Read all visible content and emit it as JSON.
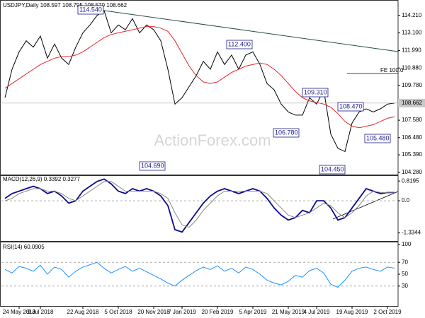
{
  "watermark": "ActionForex.com",
  "chart_data": [
    {
      "type": "line",
      "title": "USDJPY,Daily  108.597 108.795 108.570 108.662",
      "ylim": [
        104.1,
        115.0
      ],
      "yticks": [
        {
          "value": 104.28,
          "label": "104.280"
        },
        {
          "value": 105.39,
          "label": "105.390"
        },
        {
          "value": 106.48,
          "label": "106.480"
        },
        {
          "value": 107.58,
          "label": "107.580"
        },
        {
          "value": 109.78,
          "label": "109.780"
        },
        {
          "value": 110.88,
          "label": "110.880"
        },
        {
          "value": 111.99,
          "label": "111.990"
        },
        {
          "value": 113.1,
          "label": "113.100"
        },
        {
          "value": 114.21,
          "label": "114.210"
        }
      ],
      "last_price": 108.662,
      "annotations": [
        "114.540",
        "112.400",
        "109.310",
        "108.470",
        "106.780",
        "105.480",
        "104.690",
        "104.450",
        "FE 100.0"
      ],
      "series": [
        {
          "name": "USDJPY",
          "color": "#000000",
          "values": [
            109.0,
            110.8,
            111.9,
            112.6,
            112.2,
            112.9,
            111.5,
            112.4,
            111.5,
            111.1,
            112.2,
            113.1,
            113.6,
            114.2,
            114.5,
            113.1,
            113.6,
            113.3,
            114.0,
            113.1,
            113.6,
            113.3,
            112.6,
            110.8,
            108.6,
            109.0,
            109.7,
            110.4,
            111.3,
            110.8,
            111.9,
            111.1,
            111.7,
            110.8,
            111.7,
            111.9,
            111.1,
            109.9,
            109.5,
            108.6,
            108.1,
            107.9,
            107.9,
            109.0,
            108.6,
            109.5,
            106.7,
            105.8,
            105.6,
            107.4,
            108.1,
            108.3,
            108.1,
            108.3,
            108.6,
            108.662
          ]
        },
        {
          "name": "MA",
          "color": "#e8242b",
          "values": [
            109.6,
            109.9,
            110.2,
            110.5,
            110.8,
            111.1,
            111.3,
            111.5,
            111.6,
            111.6,
            111.7,
            111.9,
            112.2,
            112.5,
            112.8,
            113.0,
            113.1,
            113.2,
            113.3,
            113.4,
            113.5,
            113.5,
            113.4,
            113.2,
            112.6,
            111.8,
            111.0,
            110.4,
            110.0,
            109.9,
            110.0,
            110.3,
            110.6,
            110.8,
            111.0,
            111.1,
            111.2,
            111.1,
            110.8,
            110.4,
            109.9,
            109.4,
            109.0,
            108.8,
            108.7,
            108.6,
            108.4,
            108.0,
            107.5,
            107.2,
            107.1,
            107.2,
            107.3,
            107.5,
            107.7,
            107.8
          ]
        }
      ]
    },
    {
      "type": "line",
      "title": "MACD(12,26,9) 0.3392 0.3277",
      "ylim": [
        -1.64,
        1.0
      ],
      "yticks": [
        -1.3344,
        {
          "value": 0,
          "label": "0.0"
        },
        0.8195
      ],
      "series": [
        {
          "name": "MACD",
          "color": "#0a0a8c",
          "values": [
            0.1,
            0.3,
            0.4,
            0.5,
            0.6,
            0.5,
            0.3,
            0.4,
            0.2,
            -0.1,
            0.0,
            0.4,
            0.6,
            0.8,
            0.9,
            0.7,
            0.4,
            0.3,
            0.5,
            0.4,
            0.5,
            0.4,
            0.2,
            -0.2,
            -1.2,
            -1.3,
            -0.9,
            -0.5,
            -0.1,
            0.2,
            0.4,
            0.5,
            0.4,
            0.3,
            0.4,
            0.5,
            0.4,
            0.1,
            -0.3,
            -0.6,
            -0.8,
            -0.7,
            -0.4,
            -0.5,
            0.0,
            0.0,
            -0.3,
            -0.8,
            -0.7,
            -0.3,
            0.1,
            0.5,
            0.4,
            0.3,
            0.34,
            0.3392
          ]
        },
        {
          "name": "Signal",
          "color": "#888888",
          "values": [
            0.0,
            0.1,
            0.3,
            0.4,
            0.5,
            0.5,
            0.4,
            0.4,
            0.3,
            0.1,
            0.0,
            0.2,
            0.4,
            0.6,
            0.8,
            0.8,
            0.6,
            0.4,
            0.4,
            0.4,
            0.4,
            0.4,
            0.3,
            0.1,
            -0.5,
            -1.0,
            -1.1,
            -0.8,
            -0.4,
            -0.1,
            0.2,
            0.4,
            0.4,
            0.4,
            0.4,
            0.4,
            0.4,
            0.3,
            0.0,
            -0.3,
            -0.6,
            -0.7,
            -0.6,
            -0.5,
            -0.3,
            -0.1,
            -0.2,
            -0.5,
            -0.7,
            -0.5,
            -0.2,
            0.2,
            0.4,
            0.35,
            0.33,
            0.3277
          ]
        }
      ]
    },
    {
      "type": "line",
      "title": "RSI(14) 60.0905",
      "ylim": [
        0,
        100
      ],
      "yticks": [
        30,
        50,
        70,
        100
      ],
      "categories": [
        null,
        null,
        "24 May 2018",
        null,
        null,
        "9 Jul 2018",
        null,
        null,
        null,
        null,
        null,
        "22 Aug 2018",
        null,
        null,
        null,
        null,
        "5 Oct 2018",
        null,
        null,
        null,
        null,
        "20 Nov 2018",
        null,
        null,
        null,
        "7 Jan 2019",
        null,
        null,
        null,
        null,
        "20 Feb 2019",
        null,
        null,
        null,
        null,
        "5 Apr 2019",
        null,
        null,
        null,
        null,
        "21 May 2019",
        null,
        null,
        null,
        "4 Jul 2019",
        null,
        null,
        null,
        null,
        "19 Aug 2019",
        null,
        null,
        null,
        null,
        "2 Oct 2019",
        null
      ],
      "series": [
        {
          "name": "RSI",
          "color": "#1e90ff",
          "values": [
            58,
            52,
            63,
            60,
            55,
            65,
            50,
            62,
            58,
            45,
            55,
            62,
            66,
            70,
            60,
            52,
            58,
            63,
            55,
            60,
            54,
            48,
            42,
            35,
            30,
            40,
            48,
            56,
            62,
            58,
            64,
            55,
            60,
            52,
            62,
            58,
            50,
            40,
            35,
            32,
            38,
            48,
            45,
            56,
            60,
            52,
            33,
            28,
            40,
            55,
            60,
            62,
            58,
            55,
            62,
            60.0905
          ]
        }
      ]
    }
  ]
}
